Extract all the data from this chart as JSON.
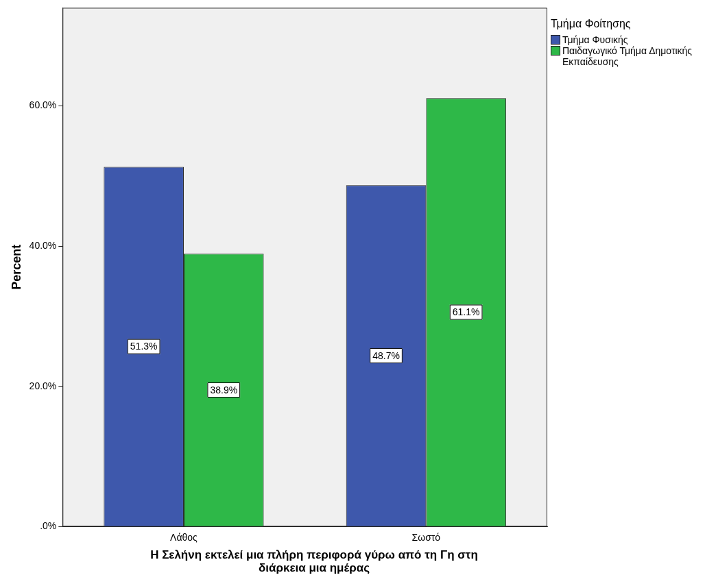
{
  "chart_data": {
    "type": "bar",
    "xlabel": "Η Σελήνη εκτελεί μια πλήρη περιφορά γύρω από τη Γη στη διάρκεια μια ημέρας",
    "ylabel": "Percent",
    "legend_title": "Τμήμα Φοίτησης",
    "legend": "top right",
    "grid": false,
    "categories": [
      "Λάθος",
      "Σωστό"
    ],
    "series": [
      {
        "name": "Τμήμα Φυσικής",
        "color": "#3e58ac",
        "values": [
          51.3,
          48.7
        ],
        "value_labels": [
          "51.3%",
          "48.7%"
        ]
      },
      {
        "name": "Παιδαγωγικό Τμήμα Δημοτικής Εκπαίδευσης",
        "color": "#2eb848",
        "values": [
          38.9,
          61.1
        ],
        "value_labels": [
          "38.9%",
          "61.1%"
        ]
      }
    ],
    "ylim": [
      0,
      74
    ],
    "yticks": [
      {
        "value": 0,
        "label": ".0%"
      },
      {
        "value": 20,
        "label": "20.0%"
      },
      {
        "value": 40,
        "label": "40.0%"
      },
      {
        "value": 60,
        "label": "60.0%"
      }
    ]
  }
}
